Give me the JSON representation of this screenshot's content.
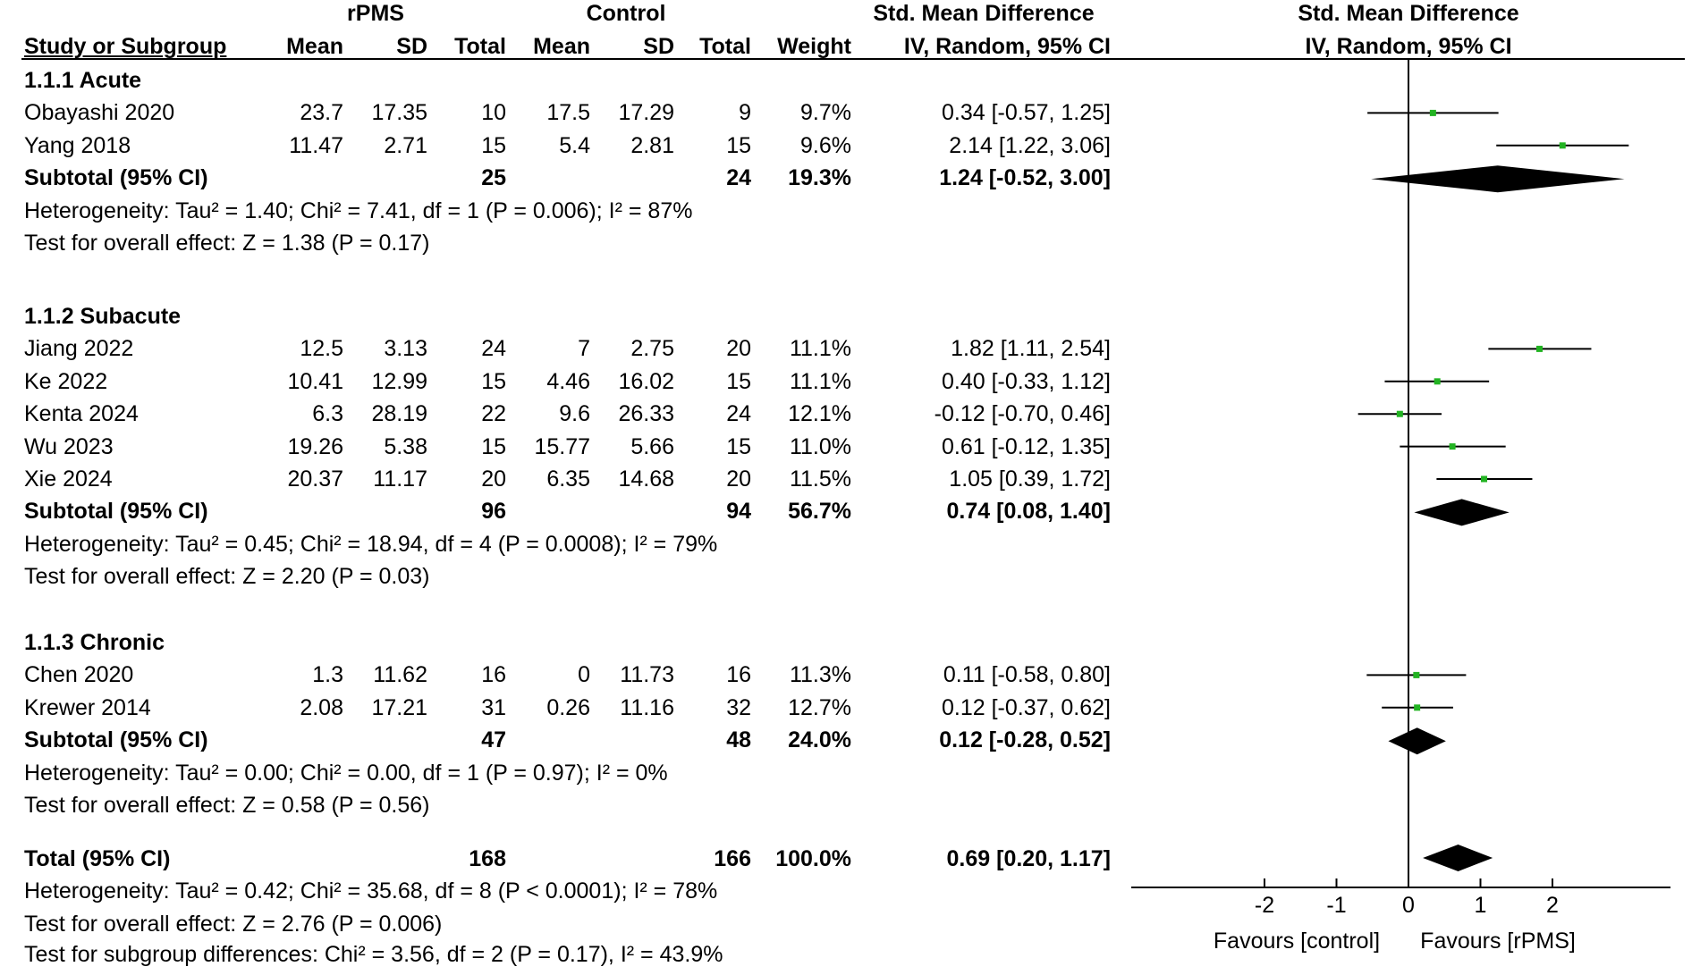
{
  "header": {
    "group1": "rPMS",
    "group2": "Control",
    "effect_title": "Std. Mean Difference",
    "plot_title": "Std. Mean Difference",
    "cols": {
      "study": "Study or Subgroup",
      "mean1": "Mean",
      "sd1": "SD",
      "total1": "Total",
      "mean2": "Mean",
      "sd2": "SD",
      "total2": "Total",
      "weight": "Weight",
      "ci": "IV, Random, 95% CI",
      "plot_ci": "IV, Random, 95% CI"
    }
  },
  "subgroups": [
    {
      "title": "1.1.1 Acute",
      "studies": [
        {
          "name": "Obayashi 2020",
          "mean1": "23.7",
          "sd1": "17.35",
          "total1": "10",
          "mean2": "17.5",
          "sd2": "17.29",
          "total2": "9",
          "weight": "9.7%",
          "ci_text": "0.34 [-0.57, 1.25]"
        },
        {
          "name": "Yang 2018",
          "mean1": "11.47",
          "sd1": "2.71",
          "total1": "15",
          "mean2": "5.4",
          "sd2": "2.81",
          "total2": "15",
          "weight": "9.6%",
          "ci_text": "2.14 [1.22, 3.06]"
        }
      ],
      "subtotal": {
        "label": "Subtotal (95% CI)",
        "total1": "25",
        "total2": "24",
        "weight": "19.3%",
        "ci_text": "1.24 [-0.52, 3.00]"
      },
      "heterogeneity": "Heterogeneity: Tau² = 1.40; Chi² = 7.41, df = 1 (P = 0.006); I² = 87%",
      "overall": "Test for overall effect: Z = 1.38 (P = 0.17)"
    },
    {
      "title": "1.1.2 Subacute",
      "studies": [
        {
          "name": "Jiang 2022",
          "mean1": "12.5",
          "sd1": "3.13",
          "total1": "24",
          "mean2": "7",
          "sd2": "2.75",
          "total2": "20",
          "weight": "11.1%",
          "ci_text": "1.82 [1.11, 2.54]"
        },
        {
          "name": "Ke 2022",
          "mean1": "10.41",
          "sd1": "12.99",
          "total1": "15",
          "mean2": "4.46",
          "sd2": "16.02",
          "total2": "15",
          "weight": "11.1%",
          "ci_text": "0.40 [-0.33, 1.12]"
        },
        {
          "name": "Kenta 2024",
          "mean1": "6.3",
          "sd1": "28.19",
          "total1": "22",
          "mean2": "9.6",
          "sd2": "26.33",
          "total2": "24",
          "weight": "12.1%",
          "ci_text": "-0.12 [-0.70, 0.46]"
        },
        {
          "name": "Wu 2023",
          "mean1": "19.26",
          "sd1": "5.38",
          "total1": "15",
          "mean2": "15.77",
          "sd2": "5.66",
          "total2": "15",
          "weight": "11.0%",
          "ci_text": "0.61 [-0.12, 1.35]"
        },
        {
          "name": "Xie 2024",
          "mean1": "20.37",
          "sd1": "11.17",
          "total1": "20",
          "mean2": "6.35",
          "sd2": "14.68",
          "total2": "20",
          "weight": "11.5%",
          "ci_text": "1.05 [0.39, 1.72]"
        }
      ],
      "subtotal": {
        "label": "Subtotal (95% CI)",
        "total1": "96",
        "total2": "94",
        "weight": "56.7%",
        "ci_text": "0.74 [0.08, 1.40]"
      },
      "heterogeneity": "Heterogeneity: Tau² = 0.45; Chi² = 18.94, df = 4 (P = 0.0008); I² = 79%",
      "overall": "Test for overall effect: Z = 2.20 (P = 0.03)"
    },
    {
      "title": "1.1.3 Chronic",
      "studies": [
        {
          "name": "Chen 2020",
          "mean1": "1.3",
          "sd1": "11.62",
          "total1": "16",
          "mean2": "0",
          "sd2": "11.73",
          "total2": "16",
          "weight": "11.3%",
          "ci_text": "0.11 [-0.58, 0.80]"
        },
        {
          "name": "Krewer 2014",
          "mean1": "2.08",
          "sd1": "17.21",
          "total1": "31",
          "mean2": "0.26",
          "sd2": "11.16",
          "total2": "32",
          "weight": "12.7%",
          "ci_text": "0.12 [-0.37, 0.62]"
        }
      ],
      "subtotal": {
        "label": "Subtotal (95% CI)",
        "total1": "47",
        "total2": "48",
        "weight": "24.0%",
        "ci_text": "0.12 [-0.28, 0.52]"
      },
      "heterogeneity": "Heterogeneity: Tau² = 0.00; Chi² = 0.00, df = 1 (P = 0.97); I² = 0%",
      "overall": "Test for overall effect: Z = 0.58 (P = 0.56)"
    }
  ],
  "total": {
    "label": "Total (95% CI)",
    "total1": "168",
    "total2": "166",
    "weight": "100.0%",
    "ci_text": "0.69 [0.20, 1.17]",
    "heterogeneity": "Heterogeneity: Tau² = 0.42; Chi² = 35.68, df = 8 (P < 0.0001); I² = 78%",
    "overall": "Test for overall effect: Z = 2.76 (P = 0.006)",
    "subgroup_diff": "Test for subgroup differences: Chi² = 3.56, df = 2 (P = 0.17), I² = 43.9%"
  },
  "axis": {
    "favours_left": "Favours [control]",
    "favours_right": "Favours [rPMS]"
  },
  "colors": {
    "point": "#22b322",
    "line": "#000000",
    "diamond": "#000000"
  },
  "chart_data": {
    "type": "forest",
    "xlim": [
      -2,
      3.1
    ],
    "xticks": [
      -2,
      -1,
      0,
      1,
      2
    ],
    "xtick_labels": [
      "-2",
      "-1",
      "0",
      "1",
      "2"
    ],
    "null_value": 0,
    "studies": [
      {
        "name": "Obayashi 2020",
        "subgroup": "1.1.1 Acute",
        "est": 0.34,
        "lo": -0.57,
        "hi": 1.25,
        "weight": 9.7
      },
      {
        "name": "Yang 2018",
        "subgroup": "1.1.1 Acute",
        "est": 2.14,
        "lo": 1.22,
        "hi": 3.06,
        "weight": 9.6
      },
      {
        "name": "Jiang 2022",
        "subgroup": "1.1.2 Subacute",
        "est": 1.82,
        "lo": 1.11,
        "hi": 2.54,
        "weight": 11.1
      },
      {
        "name": "Ke 2022",
        "subgroup": "1.1.2 Subacute",
        "est": 0.4,
        "lo": -0.33,
        "hi": 1.12,
        "weight": 11.1
      },
      {
        "name": "Kenta 2024",
        "subgroup": "1.1.2 Subacute",
        "est": -0.12,
        "lo": -0.7,
        "hi": 0.46,
        "weight": 12.1
      },
      {
        "name": "Wu 2023",
        "subgroup": "1.1.2 Subacute",
        "est": 0.61,
        "lo": -0.12,
        "hi": 1.35,
        "weight": 11.0
      },
      {
        "name": "Xie 2024",
        "subgroup": "1.1.2 Subacute",
        "est": 1.05,
        "lo": 0.39,
        "hi": 1.72,
        "weight": 11.5
      },
      {
        "name": "Chen 2020",
        "subgroup": "1.1.3 Chronic",
        "est": 0.11,
        "lo": -0.58,
        "hi": 0.8,
        "weight": 11.3
      },
      {
        "name": "Krewer 2014",
        "subgroup": "1.1.3 Chronic",
        "est": 0.12,
        "lo": -0.37,
        "hi": 0.62,
        "weight": 12.7
      }
    ],
    "summaries": [
      {
        "name": "Subtotal (95% CI)",
        "subgroup": "1.1.1 Acute",
        "est": 1.24,
        "lo": -0.52,
        "hi": 3.0
      },
      {
        "name": "Subtotal (95% CI)",
        "subgroup": "1.1.2 Subacute",
        "est": 0.74,
        "lo": 0.08,
        "hi": 1.4
      },
      {
        "name": "Subtotal (95% CI)",
        "subgroup": "1.1.3 Chronic",
        "est": 0.12,
        "lo": -0.28,
        "hi": 0.52
      },
      {
        "name": "Total (95% CI)",
        "subgroup": "overall",
        "est": 0.69,
        "lo": 0.2,
        "hi": 1.17
      }
    ]
  }
}
